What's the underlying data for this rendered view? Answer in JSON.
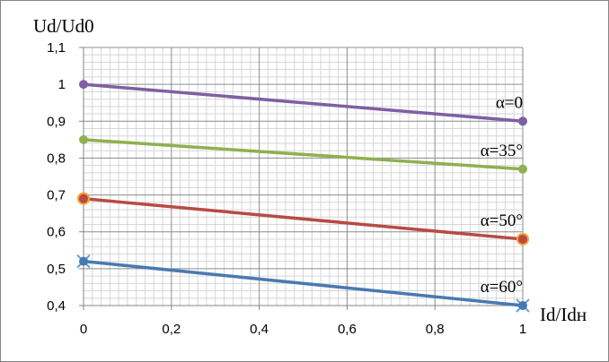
{
  "chart_data": {
    "type": "line",
    "xlabel": "Id/Idн",
    "ylabel": "Ud/Ud0",
    "xlim": [
      0,
      1
    ],
    "ylim": [
      0.4,
      1.1
    ],
    "x_ticks": [
      "0",
      "0,2",
      "0,4",
      "0,6",
      "0,8",
      "1"
    ],
    "y_ticks": [
      "0,4",
      "0,5",
      "0,6",
      "0,7",
      "0,8",
      "0,9",
      "1",
      "1,1"
    ],
    "grid": "on",
    "series": [
      {
        "name": "α=0",
        "x": [
          0,
          1
        ],
        "y": [
          1.0,
          0.9
        ],
        "color": "#7f5fa3",
        "marker": "circle"
      },
      {
        "name": "α=35°",
        "x": [
          0,
          1
        ],
        "y": [
          0.85,
          0.77
        ],
        "color": "#8fb050",
        "marker": "circle"
      },
      {
        "name": "α=50°",
        "x": [
          0,
          1
        ],
        "y": [
          0.69,
          0.58
        ],
        "color": "#b84a45",
        "marker": "circle-ring",
        "ring_color": "#f4a233"
      },
      {
        "name": "α=60°",
        "x": [
          0,
          1
        ],
        "y": [
          0.52,
          0.4
        ],
        "color": "#4a79b0",
        "marker": "circle-cross",
        "cross_color": "#5aa7d8"
      }
    ]
  }
}
